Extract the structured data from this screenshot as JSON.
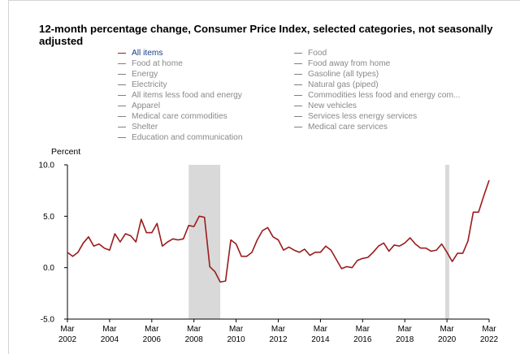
{
  "chart_data": {
    "type": "line",
    "title": "12-month percentage change, Consumer Price Index, selected categories, not seasonally adjusted",
    "ylabel": "Percent",
    "ylim": [
      -5.0,
      10.0
    ],
    "yticks": [
      "10.0",
      "5.0",
      "0.0",
      "-5.0"
    ],
    "xlim": [
      "2002-03",
      "2022-03"
    ],
    "xticks": [
      {
        "month": "Mar",
        "year": "2002"
      },
      {
        "month": "Mar",
        "year": "2004"
      },
      {
        "month": "Mar",
        "year": "2006"
      },
      {
        "month": "Mar",
        "year": "2008"
      },
      {
        "month": "Mar",
        "year": "2010"
      },
      {
        "month": "Mar",
        "year": "2012"
      },
      {
        "month": "Mar",
        "year": "2014"
      },
      {
        "month": "Mar",
        "year": "2016"
      },
      {
        "month": "Mar",
        "year": "2018"
      },
      {
        "month": "Mar",
        "year": "2020"
      },
      {
        "month": "Mar",
        "year": "2022"
      }
    ],
    "recessions": [
      [
        "2007-12",
        "2009-06"
      ],
      [
        "2020-02",
        "2020-04"
      ]
    ],
    "legend": [
      [
        "All items",
        "Food"
      ],
      [
        "Food at home",
        "Food away from home"
      ],
      [
        "Energy",
        "Gasoline (all types)"
      ],
      [
        "Electricity",
        "Natural gas (piped)"
      ],
      [
        "All items less food and energy",
        "Commodities less food and energy com..."
      ],
      [
        "Apparel",
        "New vehicles"
      ],
      [
        "Medical care commodities",
        "Services less energy services"
      ],
      [
        "Shelter",
        "Medical care services"
      ],
      [
        "Education and communication",
        ""
      ]
    ],
    "active_series": "All items",
    "series_color": "#9b1b1b",
    "series": [
      {
        "name": "All items",
        "x": [
          "2002-03",
          "2002-06",
          "2002-09",
          "2002-12",
          "2003-03",
          "2003-06",
          "2003-09",
          "2003-12",
          "2004-03",
          "2004-06",
          "2004-09",
          "2004-12",
          "2005-03",
          "2005-06",
          "2005-09",
          "2005-12",
          "2006-03",
          "2006-06",
          "2006-09",
          "2006-12",
          "2007-03",
          "2007-06",
          "2007-09",
          "2007-12",
          "2008-03",
          "2008-06",
          "2008-09",
          "2008-12",
          "2009-03",
          "2009-06",
          "2009-09",
          "2009-12",
          "2010-03",
          "2010-06",
          "2010-09",
          "2010-12",
          "2011-03",
          "2011-06",
          "2011-09",
          "2011-12",
          "2012-03",
          "2012-06",
          "2012-09",
          "2012-12",
          "2013-03",
          "2013-06",
          "2013-09",
          "2013-12",
          "2014-03",
          "2014-06",
          "2014-09",
          "2014-12",
          "2015-03",
          "2015-06",
          "2015-09",
          "2015-12",
          "2016-03",
          "2016-06",
          "2016-09",
          "2016-12",
          "2017-03",
          "2017-06",
          "2017-09",
          "2017-12",
          "2018-03",
          "2018-06",
          "2018-09",
          "2018-12",
          "2019-03",
          "2019-06",
          "2019-09",
          "2019-12",
          "2020-03",
          "2020-06",
          "2020-09",
          "2020-12",
          "2021-03",
          "2021-06",
          "2021-09",
          "2021-12",
          "2022-03"
        ],
        "values": [
          1.5,
          1.1,
          1.5,
          2.4,
          3.0,
          2.1,
          2.3,
          1.9,
          1.7,
          3.3,
          2.5,
          3.3,
          3.1,
          2.5,
          4.7,
          3.4,
          3.4,
          4.3,
          2.1,
          2.5,
          2.8,
          2.7,
          2.8,
          4.1,
          4.0,
          5.0,
          4.9,
          0.1,
          -0.4,
          -1.4,
          -1.3,
          2.7,
          2.3,
          1.1,
          1.1,
          1.5,
          2.7,
          3.6,
          3.9,
          3.0,
          2.7,
          1.7,
          2.0,
          1.7,
          1.5,
          1.8,
          1.2,
          1.5,
          1.5,
          2.1,
          1.7,
          0.8,
          -0.1,
          0.1,
          0.0,
          0.7,
          0.9,
          1.0,
          1.5,
          2.1,
          2.4,
          1.6,
          2.2,
          2.1,
          2.4,
          2.9,
          2.3,
          1.9,
          1.9,
          1.6,
          1.7,
          2.3,
          1.5,
          0.6,
          1.4,
          1.4,
          2.6,
          5.4,
          5.4,
          7.0,
          8.5
        ]
      }
    ]
  }
}
